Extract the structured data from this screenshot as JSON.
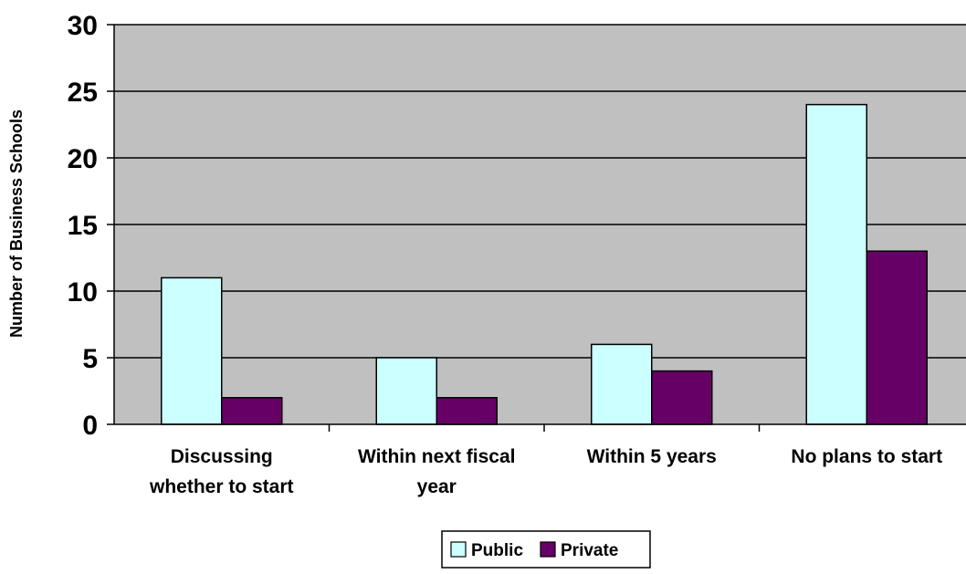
{
  "chart_data": {
    "type": "bar",
    "title": "",
    "xlabel": "",
    "ylabel": "Number of Business Schools",
    "categories": [
      [
        "Discussing",
        "whether to start"
      ],
      [
        "Within next fiscal",
        "year"
      ],
      [
        "Within 5 years"
      ],
      [
        "No plans to start"
      ]
    ],
    "series": [
      {
        "name": "Public",
        "color": "#ccffff",
        "values": [
          11,
          5,
          6,
          24
        ]
      },
      {
        "name": "Private",
        "color": "#660066",
        "values": [
          2,
          2,
          4,
          13
        ]
      }
    ],
    "ylim": [
      0,
      30
    ],
    "yticks": [
      0,
      5,
      10,
      15,
      20,
      25,
      30
    ],
    "grid": true,
    "plot_background": "#c0c0c0",
    "legend_position": "bottom"
  }
}
